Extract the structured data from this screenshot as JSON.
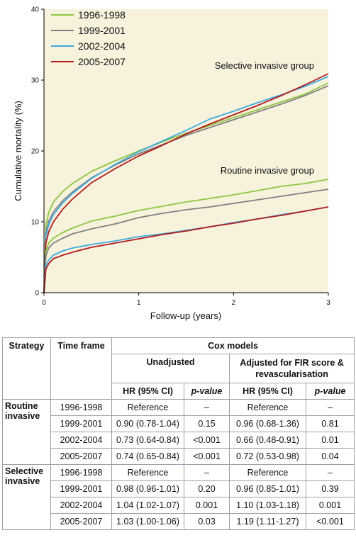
{
  "chart_data": {
    "type": "line",
    "title": "",
    "xlabel": "Follow-up (years)",
    "ylabel": "Cumulative mortality (%)",
    "xlim": [
      0,
      3
    ],
    "ylim": [
      0,
      40
    ],
    "xticks": [
      0,
      1,
      2,
      3
    ],
    "yticks": [
      0,
      10,
      20,
      30,
      40
    ],
    "grid": false,
    "legend_position": "top-left",
    "annotations": [
      {
        "text": "Selective invasive group",
        "x": 2.85,
        "y": 31.6
      },
      {
        "text": "Routine invasive group",
        "x": 2.85,
        "y": 16.8
      }
    ],
    "series": [
      {
        "name": "1996-1998",
        "color": "#8dc63f",
        "group": "selective",
        "x": [
          0,
          0.02,
          0.05,
          0.1,
          0.2,
          0.3,
          0.5,
          0.75,
          1.0,
          1.25,
          1.5,
          1.75,
          2.0,
          2.25,
          2.5,
          2.75,
          3.0
        ],
        "y": [
          0,
          9.5,
          11.3,
          12.8,
          14.3,
          15.4,
          17.1,
          18.6,
          20.0,
          21.3,
          22.5,
          23.6,
          24.7,
          25.8,
          26.9,
          28.0,
          29.6
        ]
      },
      {
        "name": "1999-2001",
        "color": "#808080",
        "group": "selective",
        "x": [
          0,
          0.02,
          0.05,
          0.1,
          0.2,
          0.3,
          0.5,
          0.75,
          1.0,
          1.25,
          1.5,
          1.75,
          2.0,
          2.25,
          2.5,
          2.75,
          3.0
        ],
        "y": [
          0,
          8.5,
          10.1,
          11.4,
          13.0,
          14.2,
          16.2,
          18.0,
          19.6,
          20.9,
          22.2,
          23.3,
          24.4,
          25.5,
          26.6,
          27.8,
          29.2
        ]
      },
      {
        "name": "2002-2004",
        "color": "#3fa9df",
        "group": "selective",
        "x": [
          0,
          0.02,
          0.05,
          0.1,
          0.2,
          0.3,
          0.5,
          0.75,
          1.0,
          1.25,
          1.5,
          1.75,
          2.0,
          2.25,
          2.5,
          2.75,
          3.0
        ],
        "y": [
          0,
          8.0,
          9.6,
          11.0,
          12.7,
          14.0,
          16.1,
          18.1,
          19.9,
          21.4,
          22.9,
          24.5,
          25.6,
          26.8,
          27.9,
          29.1,
          30.5
        ]
      },
      {
        "name": "2005-2007",
        "color": "#b31b1b",
        "group": "selective",
        "x": [
          0,
          0.02,
          0.05,
          0.1,
          0.2,
          0.3,
          0.5,
          0.75,
          1.0,
          1.25,
          1.5,
          1.75,
          2.0,
          2.25,
          2.5,
          2.75,
          3.0
        ],
        "y": [
          0,
          7.0,
          8.6,
          10.0,
          11.8,
          13.2,
          15.5,
          17.5,
          19.3,
          20.8,
          22.4,
          23.8,
          25.1,
          26.4,
          27.8,
          29.3,
          30.9
        ]
      },
      {
        "name": "1996-1998",
        "color": "#8dc63f",
        "group": "routine",
        "x": [
          0,
          0.02,
          0.05,
          0.1,
          0.2,
          0.3,
          0.5,
          0.75,
          1.0,
          1.25,
          1.5,
          1.75,
          2.0,
          2.25,
          2.5,
          2.75,
          3.0
        ],
        "y": [
          0,
          5.8,
          7.0,
          7.7,
          8.5,
          9.1,
          10.1,
          10.8,
          11.6,
          12.2,
          12.8,
          13.3,
          13.8,
          14.4,
          15.0,
          15.4,
          16.0
        ]
      },
      {
        "name": "1999-2001",
        "color": "#808080",
        "group": "routine",
        "x": [
          0,
          0.02,
          0.05,
          0.1,
          0.2,
          0.3,
          0.5,
          0.75,
          1.0,
          1.25,
          1.5,
          1.75,
          2.0,
          2.25,
          2.5,
          2.75,
          3.0
        ],
        "y": [
          0,
          5.2,
          6.3,
          7.0,
          7.7,
          8.3,
          9.0,
          9.7,
          10.6,
          11.2,
          11.7,
          12.1,
          12.6,
          13.1,
          13.6,
          14.1,
          14.6
        ]
      },
      {
        "name": "2002-2004",
        "color": "#3fa9df",
        "group": "routine",
        "x": [
          0,
          0.02,
          0.05,
          0.1,
          0.2,
          0.3,
          0.5,
          0.75,
          1.0,
          1.25,
          1.5,
          1.75,
          2.0,
          2.25,
          2.5,
          2.75,
          3.0
        ],
        "y": [
          0,
          3.8,
          4.6,
          5.3,
          5.9,
          6.3,
          6.8,
          7.3,
          7.9,
          8.3,
          8.8,
          9.3,
          9.9,
          10.4,
          11.0,
          11.5,
          12.1
        ]
      },
      {
        "name": "2005-2007",
        "color": "#b31b1b",
        "group": "routine",
        "x": [
          0,
          0.02,
          0.05,
          0.1,
          0.2,
          0.3,
          0.5,
          0.75,
          1.0,
          1.25,
          1.5,
          1.75,
          2.0,
          2.25,
          2.5,
          2.75,
          3.0
        ],
        "y": [
          0,
          3.3,
          4.1,
          4.8,
          5.3,
          5.7,
          6.4,
          7.0,
          7.6,
          8.2,
          8.7,
          9.3,
          9.8,
          10.4,
          10.9,
          11.5,
          12.1
        ]
      }
    ]
  },
  "table": {
    "headers": {
      "strategy": "Strategy",
      "time_frame": "Time frame",
      "cox_models": "Cox models",
      "unadjusted": "Unadjusted",
      "adjusted_line1": "Adjusted for FIR score &",
      "adjusted_line2": "revascularisation",
      "hr": "HR (95% CI)",
      "p_value": "p-value"
    },
    "groups": [
      {
        "label_line1": "Routine",
        "label_line2": "invasive",
        "rows": [
          {
            "time_frame": "1996-1998",
            "unadj_hr": "Reference",
            "unadj_p": "–",
            "adj_hr": "Reference",
            "adj_p": "–"
          },
          {
            "time_frame": "1999-2001",
            "unadj_hr": "0.90 (0.78-1.04)",
            "unadj_p": "0.15",
            "adj_hr": "0.96 (0.68-1.36)",
            "adj_p": "0.81"
          },
          {
            "time_frame": "2002-2004",
            "unadj_hr": "0.73 (0.64-0.84)",
            "unadj_p": "<0.001",
            "adj_hr": "0.66 (0.48-0.91)",
            "adj_p": "0.01"
          },
          {
            "time_frame": "2005-2007",
            "unadj_hr": "0.74 (0.65-0.84)",
            "unadj_p": "<0.001",
            "adj_hr": "0.72 (0.53-0.98)",
            "adj_p": "0.04"
          }
        ]
      },
      {
        "label_line1": "Selective",
        "label_line2": "invasive",
        "rows": [
          {
            "time_frame": "1996-1998",
            "unadj_hr": "Reference",
            "unadj_p": "–",
            "adj_hr": "Reference",
            "adj_p": "–"
          },
          {
            "time_frame": "1999-2001",
            "unadj_hr": "0.98 (0.96-1.01)",
            "unadj_p": "0.20",
            "adj_hr": "0.96 (0.85-1.01)",
            "adj_p": "0.39"
          },
          {
            "time_frame": "2002-2004",
            "unadj_hr": "1.04 (1.02-1.07)",
            "unadj_p": "0.001",
            "adj_hr": "1.10 (1.03-1.18)",
            "adj_p": "0.001"
          },
          {
            "time_frame": "2005-2007",
            "unadj_hr": "1.03 (1.00-1.06)",
            "unadj_p": "0.03",
            "adj_hr": "1.19 (1.11-1.27)",
            "adj_p": "<0.001"
          }
        ]
      }
    ]
  }
}
